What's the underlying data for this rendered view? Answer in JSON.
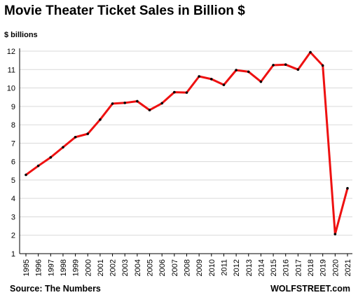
{
  "chart_data": {
    "type": "line",
    "title": "Movie Theater Ticket Sales in Billion $",
    "unit_label": "$ billions",
    "xlabel": "",
    "ylabel": "",
    "x": [
      "1995",
      "1996",
      "1997",
      "1998",
      "1999",
      "2000",
      "2001",
      "2002",
      "2003",
      "2004",
      "2005",
      "2006",
      "2007",
      "2008",
      "2009",
      "2010",
      "2011",
      "2012",
      "2013",
      "2014",
      "2015",
      "2016",
      "2017",
      "2018",
      "2019",
      "2020",
      "2021"
    ],
    "series": [
      {
        "name": "",
        "values": [
          5.28,
          5.77,
          6.23,
          6.78,
          7.33,
          7.51,
          8.28,
          9.15,
          9.19,
          9.28,
          8.8,
          9.17,
          9.77,
          9.75,
          10.63,
          10.48,
          10.17,
          10.97,
          10.88,
          10.34,
          11.24,
          11.27,
          11.0,
          11.94,
          11.22,
          2.06,
          4.55
        ]
      }
    ],
    "ylim": [
      1,
      12
    ],
    "yticks": [
      1,
      2,
      3,
      4,
      5,
      6,
      7,
      8,
      9,
      10,
      11,
      12
    ],
    "grid": true,
    "legend": "none",
    "line_color": "#ee1111",
    "marker_color": "#000000",
    "grid_color": "#d9d9d9"
  },
  "footer": {
    "source": "Source: The Numbers",
    "brand": "WOLFSTREET.com"
  }
}
